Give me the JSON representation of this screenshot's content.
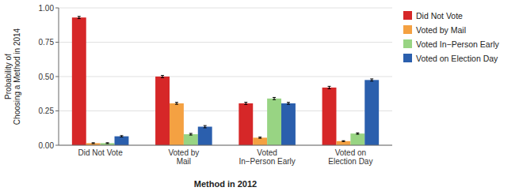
{
  "chart_data": {
    "type": "bar",
    "categories": [
      "Did Not Vote",
      "Voted by\nMail",
      "Voted\nIn−Person Early",
      "Voted on\nElection Day"
    ],
    "series": [
      {
        "name": "Did Not Vote",
        "color": "#d62728",
        "values": [
          0.93,
          0.5,
          0.305,
          0.42
        ],
        "errors": [
          0.008,
          0.008,
          0.008,
          0.009
        ]
      },
      {
        "name": "Voted by Mail",
        "color": "#f4a142",
        "values": [
          0.015,
          0.305,
          0.055,
          0.03
        ],
        "errors": [
          0.003,
          0.007,
          0.004,
          0.003
        ]
      },
      {
        "name": "Voted In−Person Early",
        "color": "#98d483",
        "values": [
          0.015,
          0.08,
          0.34,
          0.085
        ],
        "errors": [
          0.003,
          0.006,
          0.008,
          0.005
        ]
      },
      {
        "name": "Voted on Election Day",
        "color": "#2b5fad",
        "values": [
          0.065,
          0.135,
          0.305,
          0.475
        ],
        "errors": [
          0.005,
          0.008,
          0.007,
          0.008
        ]
      }
    ],
    "xlabel": "Method in 2012",
    "ylabel": "Probability of\nChoosing a Method in 2014",
    "ylim": [
      0,
      1.0
    ],
    "yticks": [
      {
        "value": 0.0,
        "label": "0.00"
      },
      {
        "value": 0.25,
        "label": "0.25"
      },
      {
        "value": 0.5,
        "label": "0.50"
      },
      {
        "value": 0.75,
        "label": "0.75"
      },
      {
        "value": 1.0,
        "label": "1.00"
      }
    ],
    "grid": true,
    "legend": "right"
  }
}
